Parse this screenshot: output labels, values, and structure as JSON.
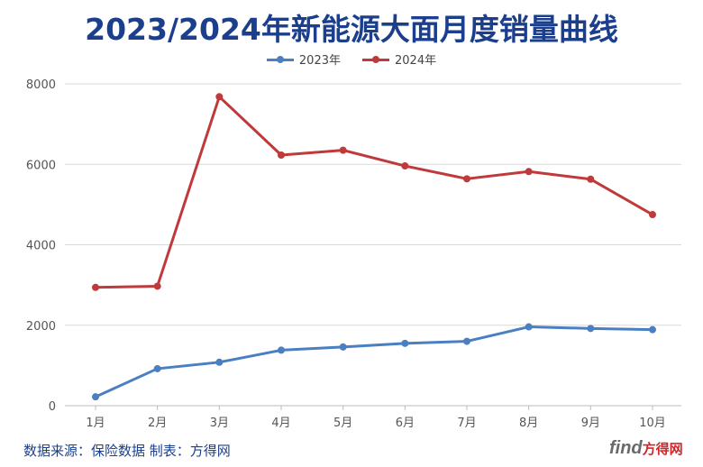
{
  "chart_data": {
    "type": "line",
    "title": "2023/2024年新能源大面月度销量曲线",
    "categories": [
      "1月",
      "2月",
      "3月",
      "4月",
      "5月",
      "6月",
      "7月",
      "8月",
      "9月",
      "10月"
    ],
    "series": [
      {
        "name": "2023年",
        "color": "#4a7fc1",
        "values": [
          220,
          920,
          1080,
          1380,
          1460,
          1550,
          1600,
          1960,
          1920,
          1890
        ]
      },
      {
        "name": "2024年",
        "color": "#c0393b",
        "values": [
          2940,
          2970,
          7680,
          6230,
          6350,
          5960,
          5640,
          5820,
          5630,
          4750
        ]
      }
    ],
    "ylim": [
      0,
      8000
    ],
    "yticks": [
      0,
      2000,
      4000,
      6000,
      8000
    ],
    "grid": true,
    "legend": "top-center"
  },
  "footer": {
    "source": "数据来源：保险数据  制表：方得网",
    "watermark_logo": "find",
    "watermark_cn": "方得网"
  }
}
